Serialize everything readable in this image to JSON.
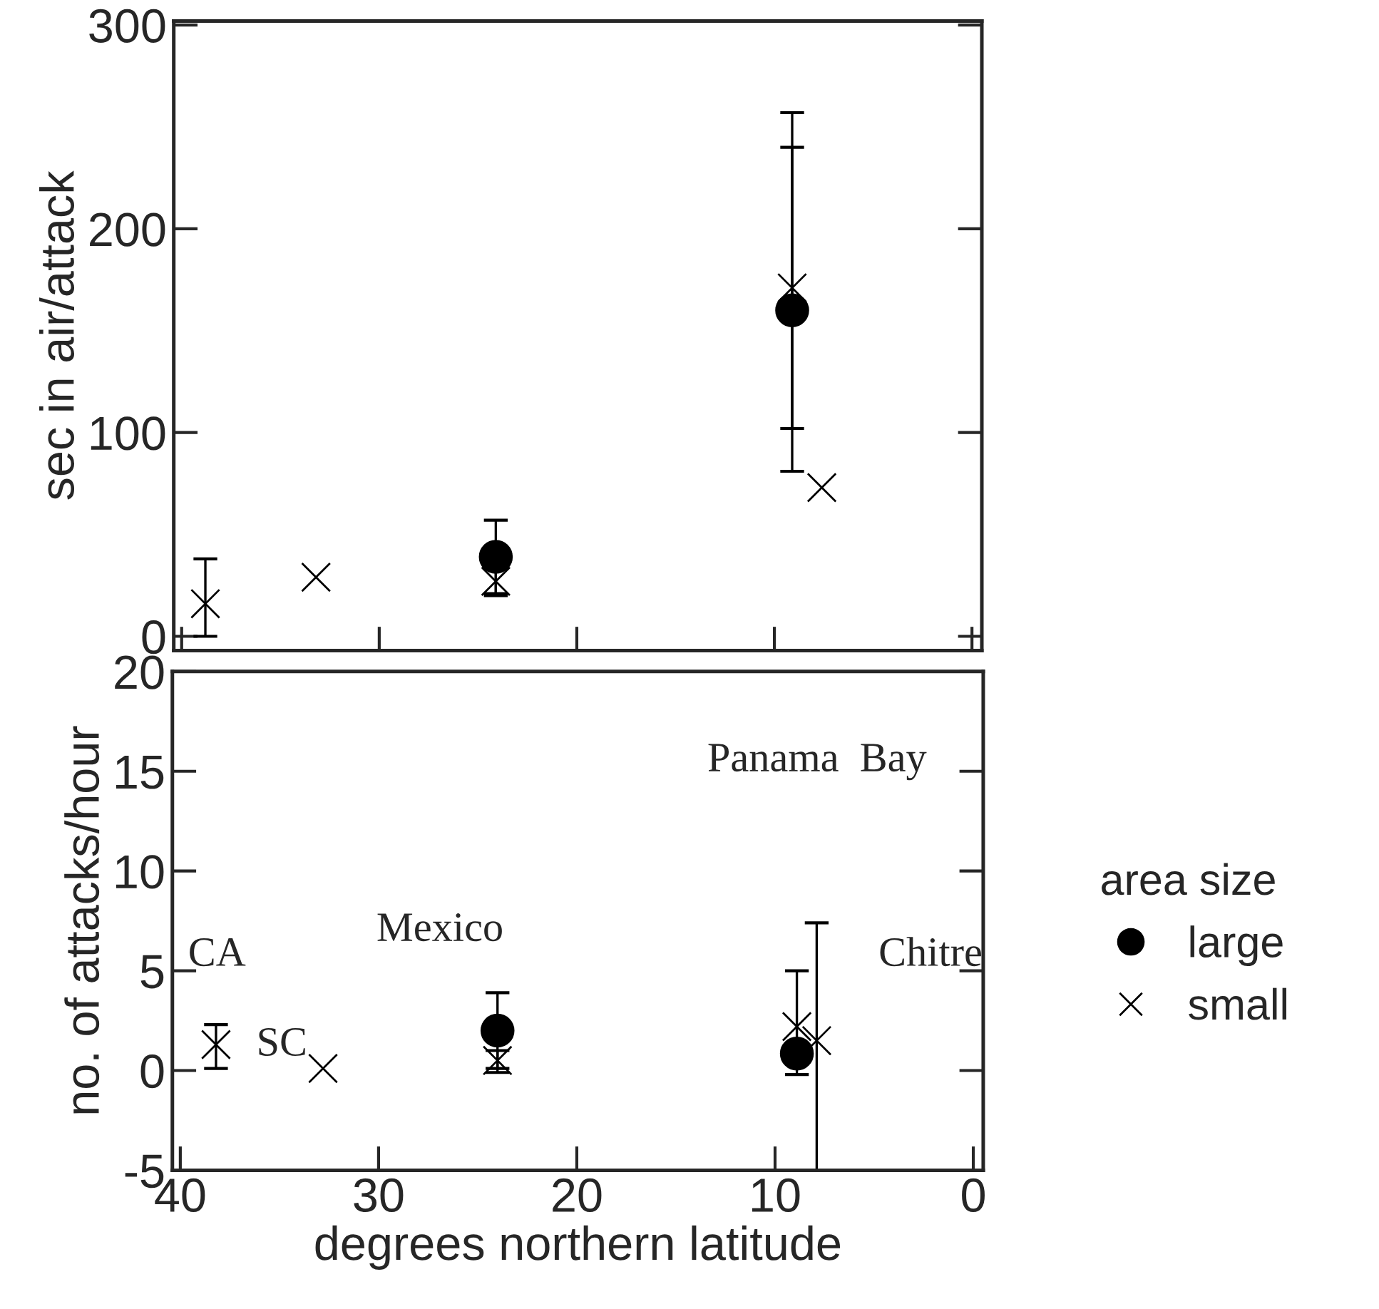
{
  "chart_data": [
    {
      "type": "scatter",
      "ylabel": "sec in air/attack",
      "xlim": [
        40.4,
        -0.5
      ],
      "ylim": [
        -7,
        302
      ],
      "xticks": [
        40,
        30,
        20,
        10,
        0
      ],
      "yticks": [
        0,
        100,
        200,
        300
      ],
      "tick_labels": "y",
      "grid": false,
      "series": [
        {
          "marker": "circle",
          "color": "#000000",
          "x": [
            24.1,
            9.1
          ],
          "values": [
            39,
            160
          ],
          "errors": [
            [
              21,
              57
            ],
            [
              81,
              257
            ]
          ]
        },
        {
          "marker": "cross",
          "color": "#000000",
          "x": [
            38.8,
            33.2,
            24.1,
            9.1,
            7.6
          ],
          "values": [
            16,
            29,
            27,
            171,
            73
          ],
          "errors": [
            [
              0,
              38
            ],
            null,
            [
              20,
              33
            ],
            [
              102,
              240
            ],
            null
          ]
        }
      ]
    },
    {
      "type": "scatter",
      "xlabel": "degrees northern latitude",
      "ylabel": "no. of attacks/hour",
      "xlim": [
        40.4,
        -0.5
      ],
      "ylim": [
        -5,
        20
      ],
      "xticks": [
        40,
        30,
        20,
        10,
        0
      ],
      "yticks": [
        -5,
        0,
        5,
        10,
        15,
        20
      ],
      "grid": false,
      "legend": "right",
      "legend_title": "area size",
      "series": [
        {
          "name": "large",
          "marker": "circle",
          "color": "#000000",
          "x": [
            24,
            8.9
          ],
          "values": [
            2.0,
            0.85
          ],
          "errors": [
            [
              0.1,
              3.9
            ],
            [
              -0.2,
              5.0
            ]
          ]
        },
        {
          "name": "small",
          "marker": "cross",
          "color": "#000000",
          "x": [
            38.2,
            32.8,
            24,
            8.9,
            7.9
          ],
          "values": [
            1.3,
            0.1,
            0.5,
            2.2,
            1.5
          ],
          "errors": [
            [
              0.1,
              2.3
            ],
            null,
            [
              -0.1,
              1.0
            ],
            null,
            [
              -5,
              7.4
            ]
          ]
        }
      ],
      "annotations": [
        "CA",
        "SC",
        "Mexico",
        "Panama  Bay",
        "Chitre"
      ]
    }
  ]
}
